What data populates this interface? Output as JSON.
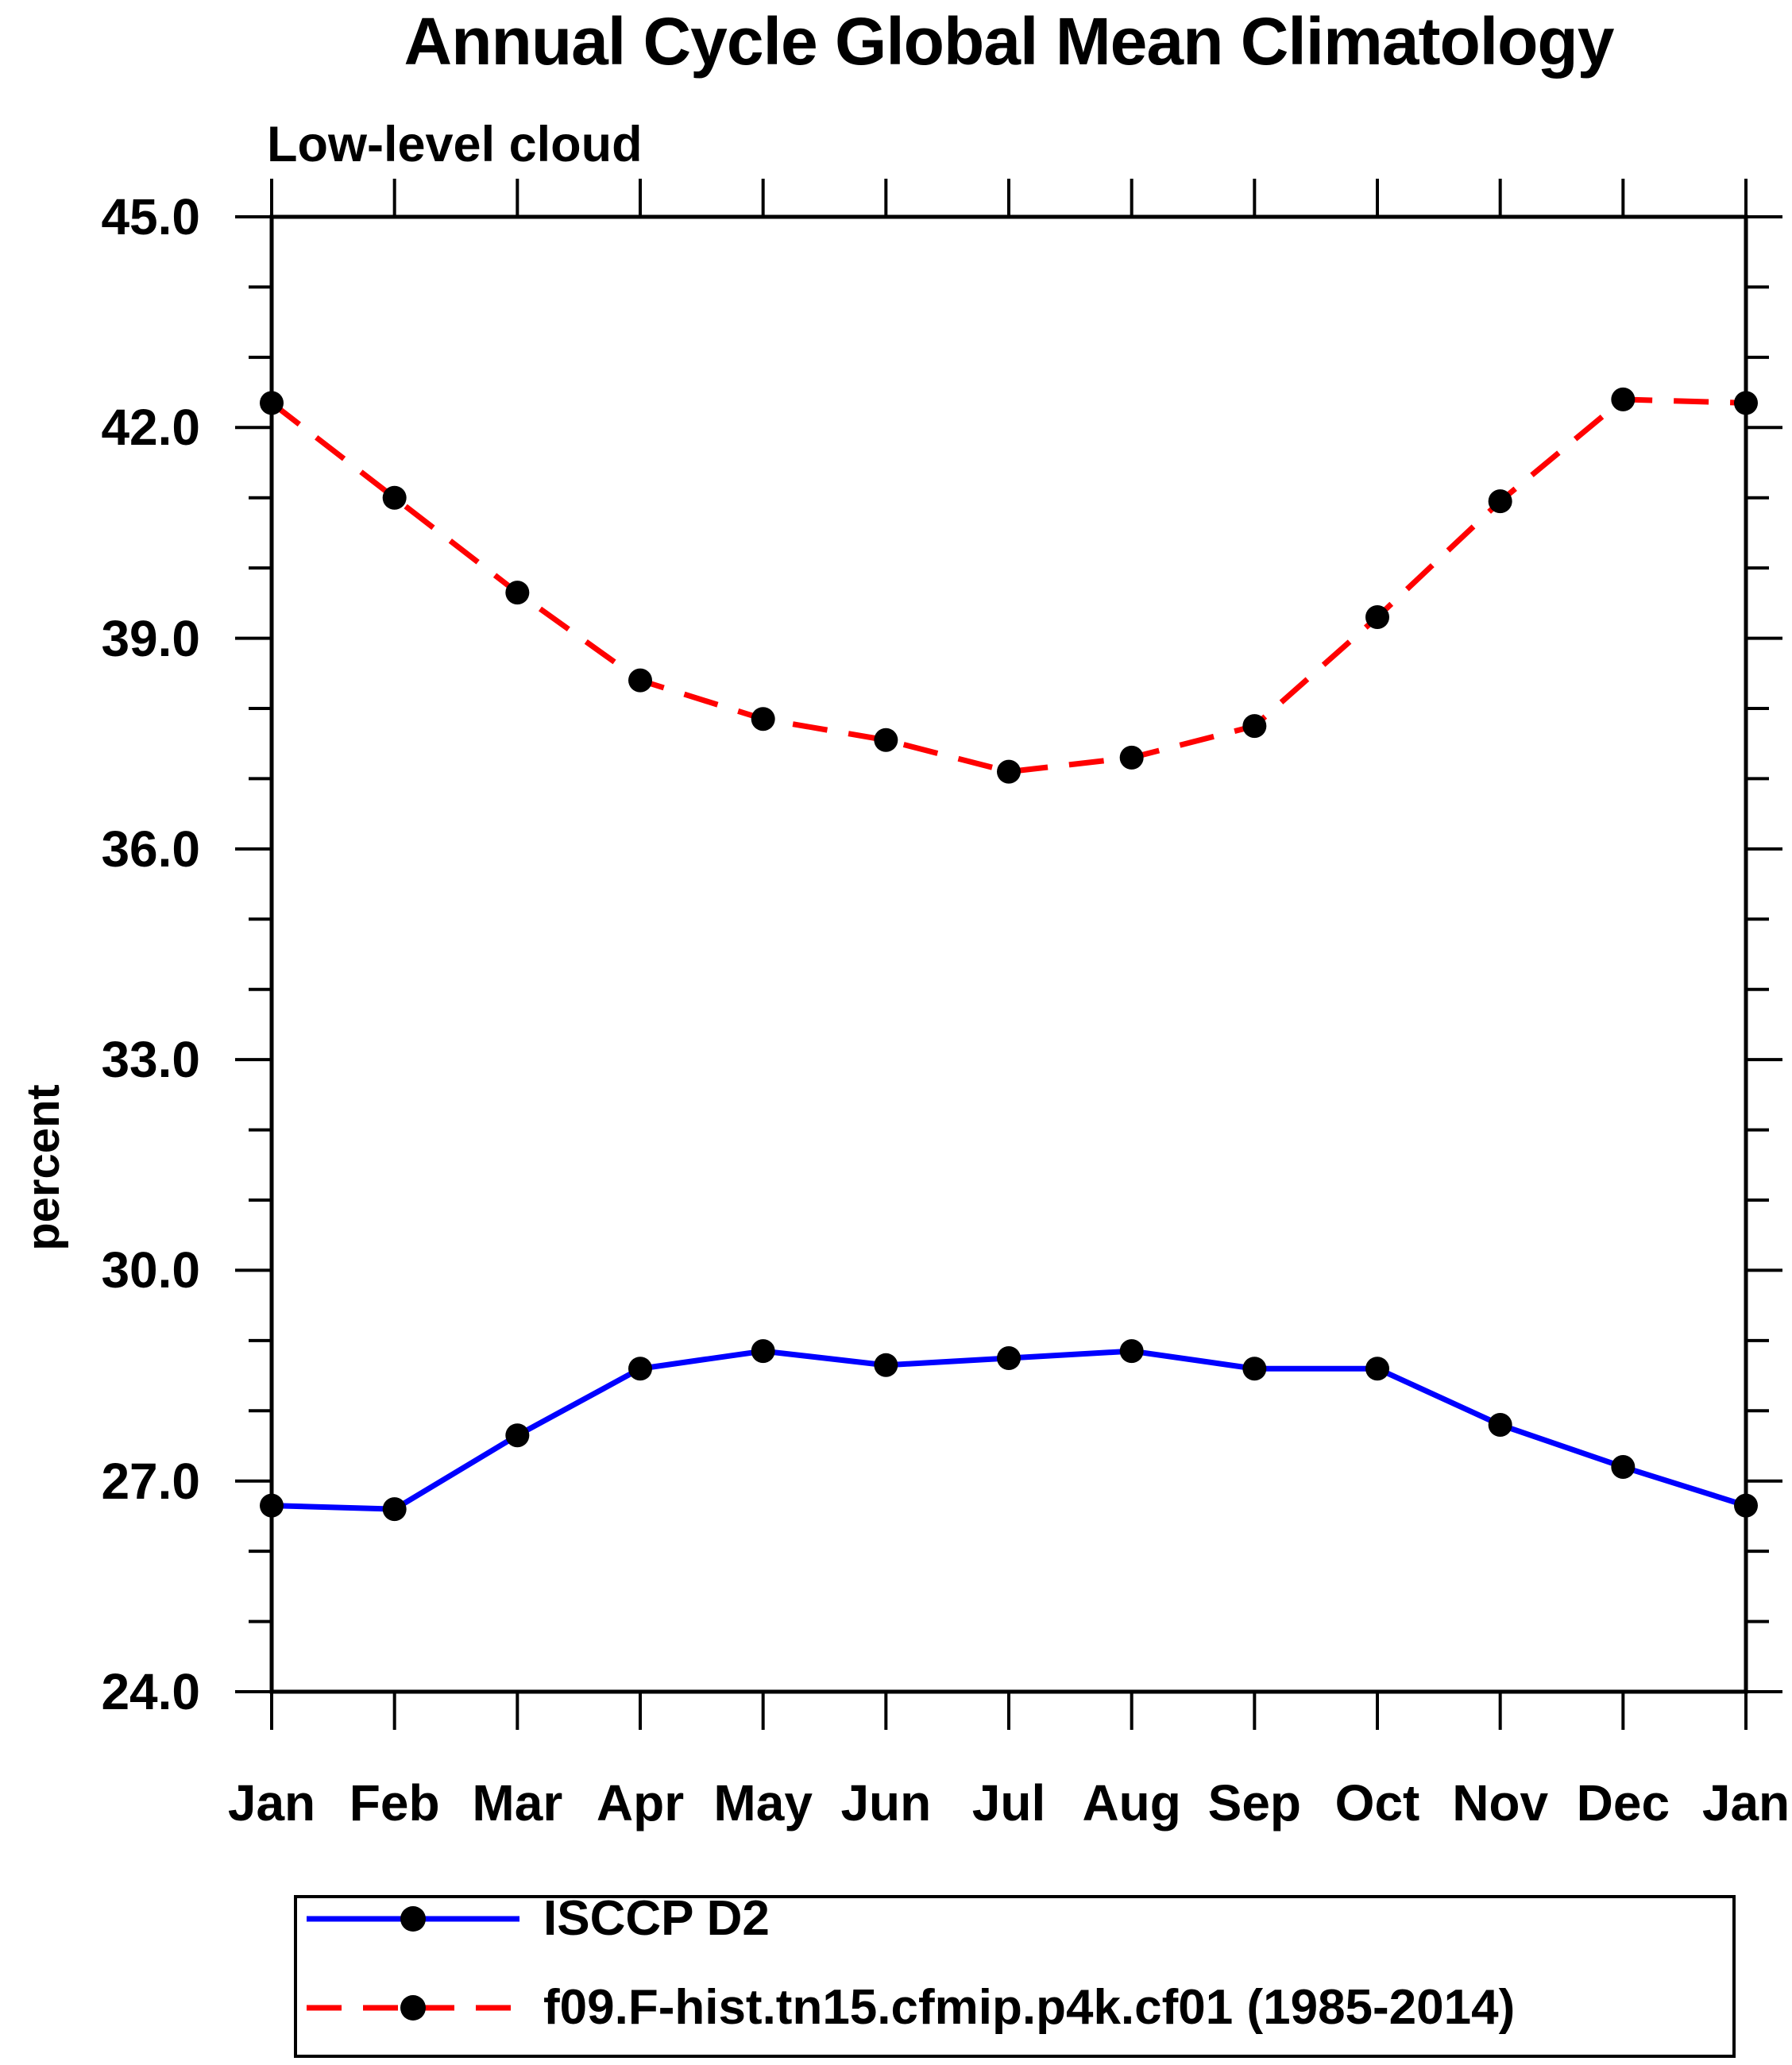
{
  "title": "Annual Cycle Global Mean Climatology",
  "subtitle": "Low-level cloud",
  "colors": {
    "axis": "#000000",
    "marker": "#000000",
    "series_isccp": "#0000ff",
    "series_model": "#ff0000",
    "background": "#ffffff"
  },
  "chart_data": {
    "type": "line",
    "title": "Annual Cycle Global Mean Climatology",
    "subtitle": "Low-level cloud",
    "xlabel": "",
    "ylabel": "percent",
    "ylim": [
      24.0,
      45.0
    ],
    "y_major_step": 3.0,
    "y_minor_step": 1.0,
    "y_tick_labels": [
      "24.0",
      "27.0",
      "30.0",
      "33.0",
      "36.0",
      "39.0",
      "42.0",
      "45.0"
    ],
    "grid": false,
    "legend_position": "bottom",
    "categories": [
      "Jan",
      "Feb",
      "Mar",
      "Apr",
      "May",
      "Jun",
      "Jul",
      "Aug",
      "Sep",
      "Oct",
      "Nov",
      "Dec",
      "Jan"
    ],
    "series": [
      {
        "name": "ISCCP D2",
        "color": "#0000ff",
        "line_style": "solid",
        "marker": "filled-circle",
        "marker_color": "#000000",
        "values": [
          26.65,
          26.6,
          27.65,
          28.6,
          28.85,
          28.65,
          28.75,
          28.85,
          28.6,
          28.6,
          27.8,
          27.2,
          26.65
        ]
      },
      {
        "name": "f09.F-hist.tn15.cfmip.p4k.cf01 (1985-2014)",
        "color": "#ff0000",
        "line_style": "dashed",
        "marker": "filled-circle",
        "marker_color": "#000000",
        "values": [
          42.35,
          41.0,
          39.65,
          38.4,
          37.85,
          37.55,
          37.1,
          37.3,
          37.75,
          39.3,
          40.95,
          42.4,
          42.35
        ]
      }
    ]
  }
}
